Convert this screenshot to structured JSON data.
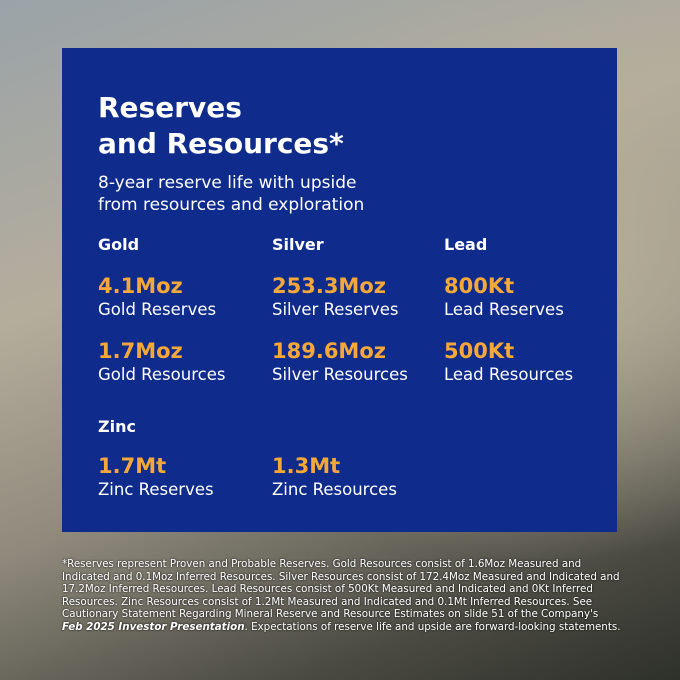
{
  "panel": {
    "title": [
      "Reserves",
      "and Resources*"
    ],
    "subtitle": [
      "8-year reserve life with upside",
      "from resources and exploration"
    ],
    "groups": [
      {
        "name": "Gold",
        "items": [
          {
            "value": "4.1Moz",
            "label": "Gold Reserves"
          },
          {
            "value": "1.7Moz",
            "label": "Gold Resources"
          }
        ]
      },
      {
        "name": "Silver",
        "items": [
          {
            "value": "253.3Moz",
            "label": "Silver Reserves"
          },
          {
            "value": "189.6Moz",
            "label": "Silver Resources"
          }
        ]
      },
      {
        "name": "Lead",
        "items": [
          {
            "value": "800Kt",
            "label": "Lead Reserves"
          },
          {
            "value": "500Kt",
            "label": "Lead Resources"
          }
        ]
      },
      {
        "name": "Zinc",
        "items": [
          {
            "value": "1.7Mt",
            "label": "Zinc Reserves"
          },
          {
            "value": "1.3Mt",
            "label": "Zinc Resources"
          }
        ]
      }
    ]
  },
  "footnote": {
    "before": "*Reserves represent Proven and Probable Reserves. Gold Resources consist of 1.6Moz Measured and Indicated and 0.1Moz Inferred Resources. Silver Resources consist of 172.4Moz Measured and Indicated and 17.2Moz Inferred Resources. Lead Resources consist of 500Kt Measured and Indicated and 0Kt Inferred Resources. Zinc Resources consist of 1.2Mt Measured and Indicated and 0.1Mt Inferred Resources. See Cautionary Statement Regarding Mineral Reserve and Resource Estimates on slide 51 of the Company's ",
    "emphasis": "Feb 2025 Investor Presentation",
    "after": ". Expectations of reserve life and upside are forward-looking statements."
  }
}
